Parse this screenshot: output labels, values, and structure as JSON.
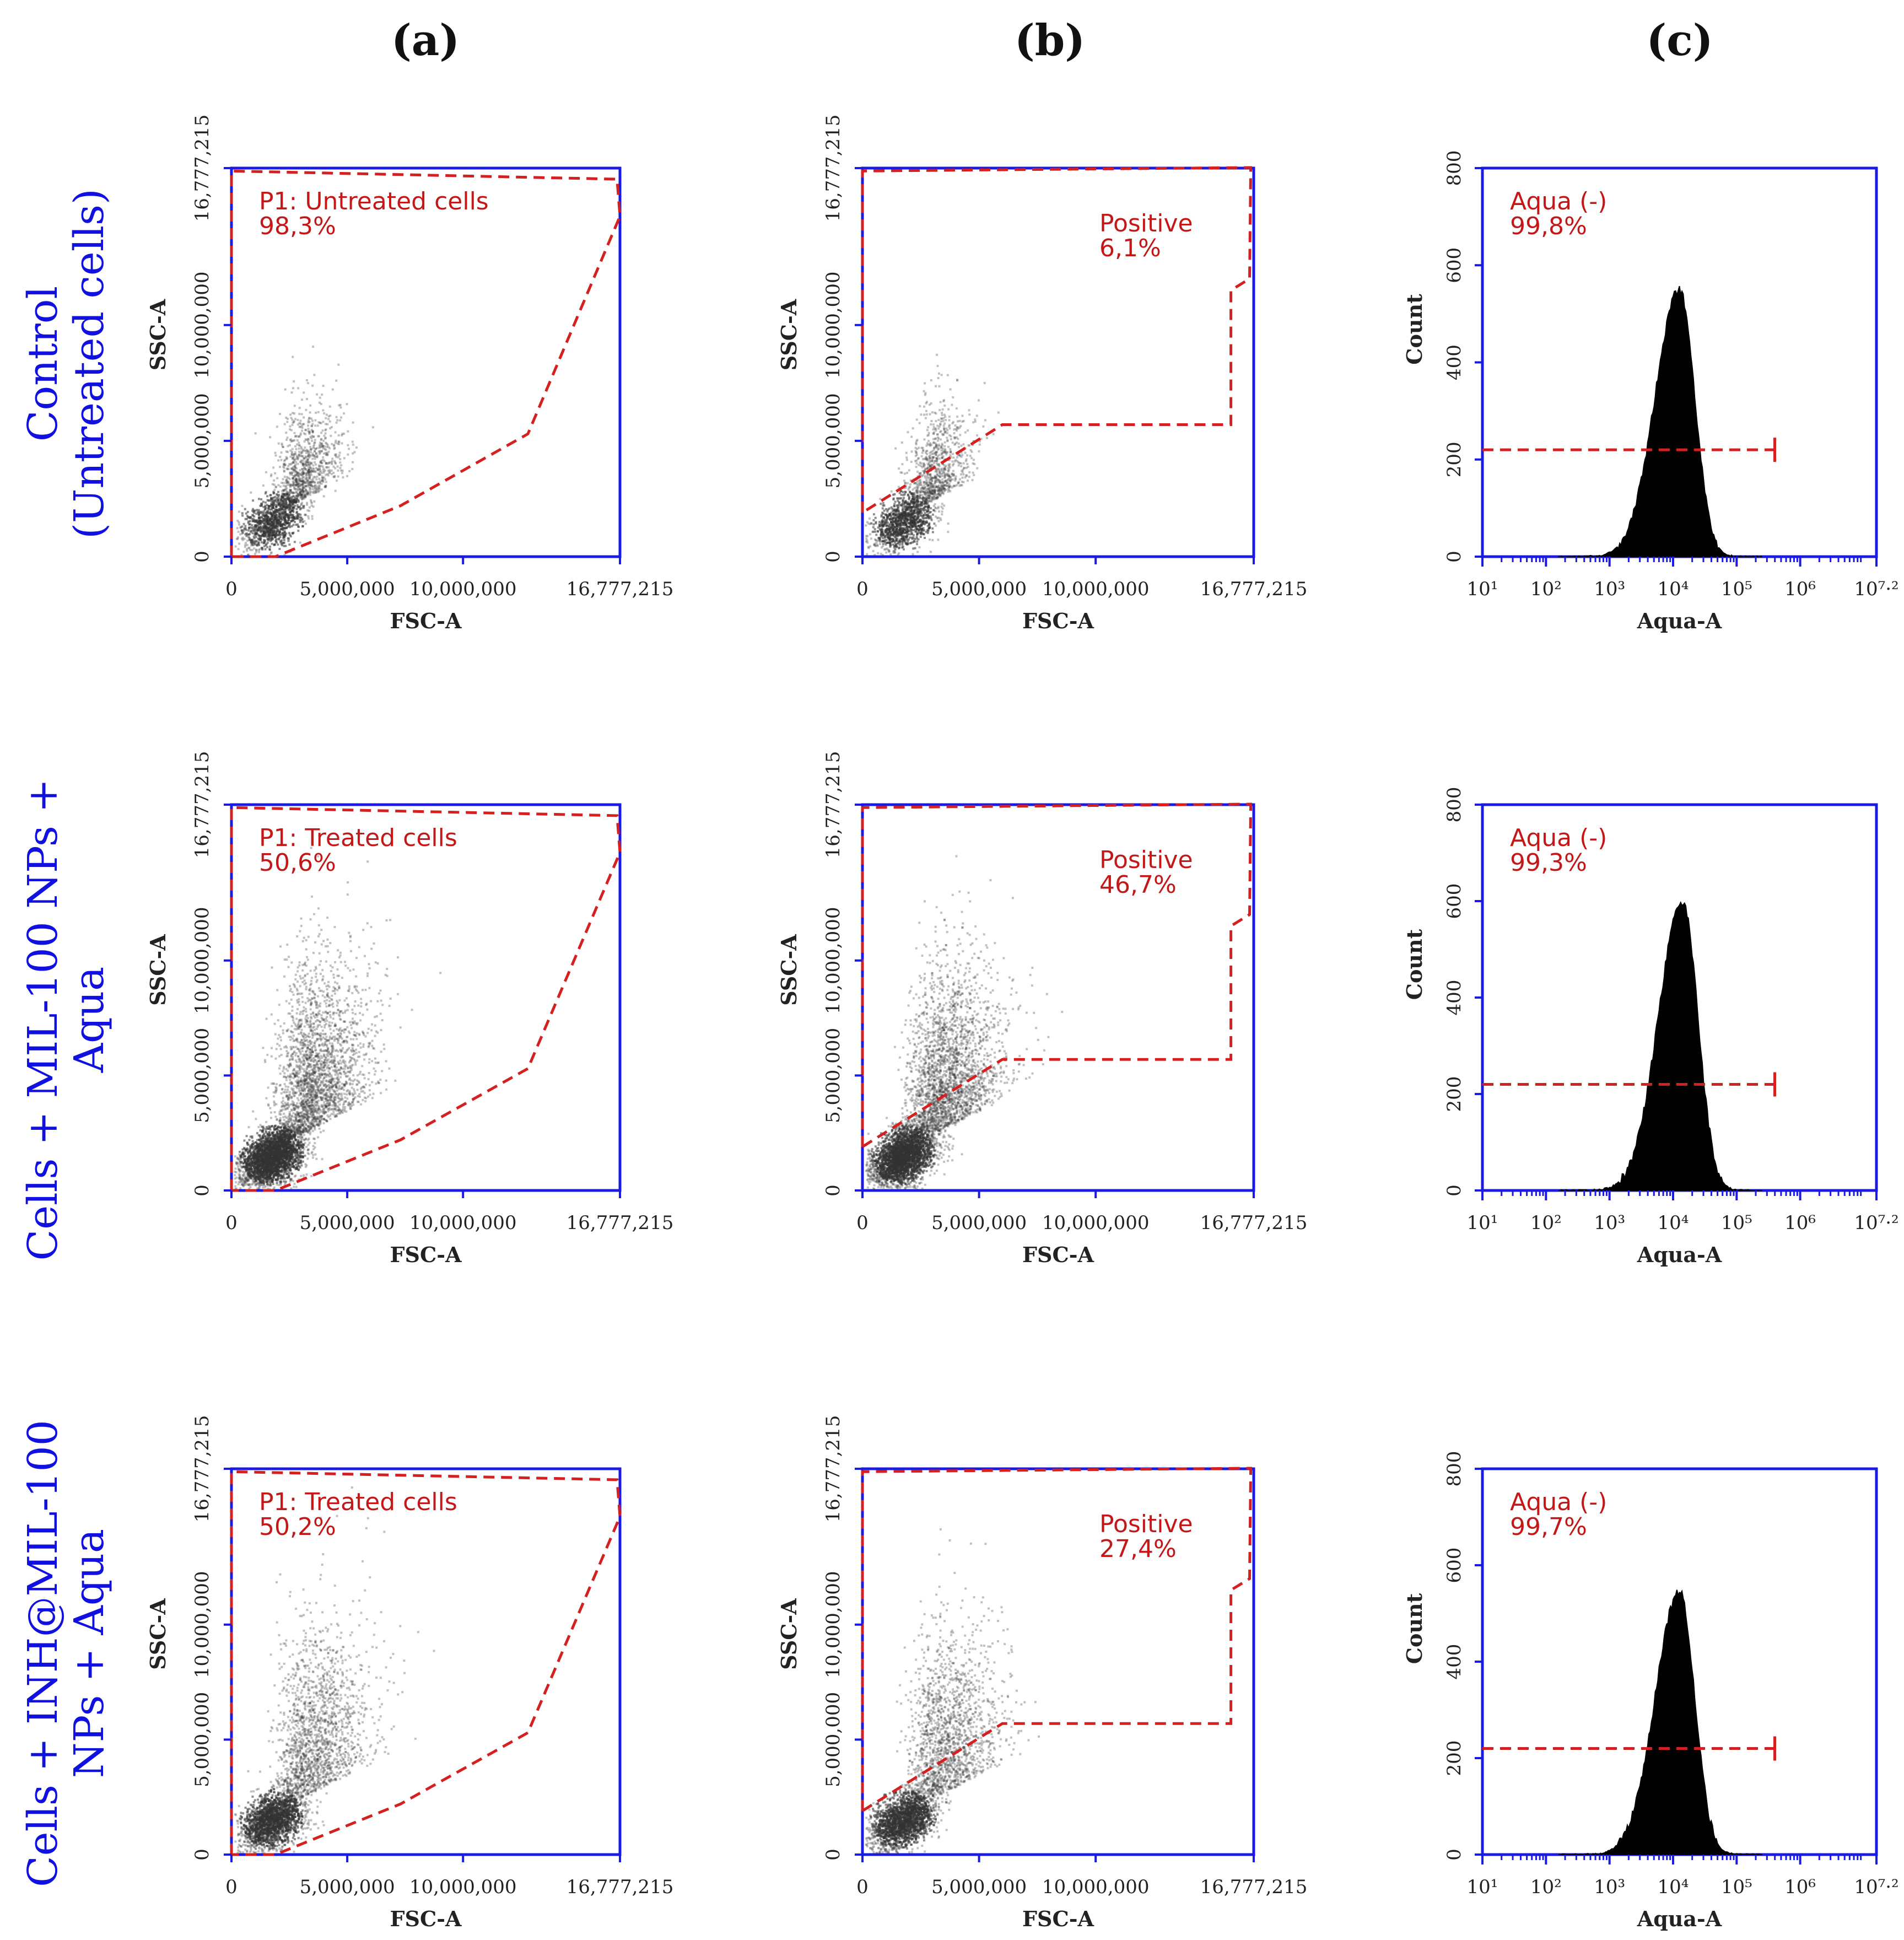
{
  "column_labels": [
    "(a)",
    "(b)",
    "(c)"
  ],
  "row_labels": [
    [
      "Control",
      "(Untreated cells)"
    ],
    [
      "Cells + MIL-100 NPs +",
      "Aqua"
    ],
    [
      "Cells + INH@MIL-100",
      "NPs + Aqua"
    ]
  ],
  "colors": {
    "axis": "#1a1ae0",
    "gate": "#d42020",
    "gate_text": "#c41818",
    "histogram": "#000000",
    "row_label": "#1010e0",
    "dots": "#333333"
  },
  "chart_data": [
    {
      "row": 0,
      "col": 0,
      "type": "scatter",
      "title": "",
      "xlabel": "FSC-A",
      "ylabel": "SSC-A",
      "xlim": [
        0,
        16777215
      ],
      "ylim": [
        0,
        16777215
      ],
      "xticks": [
        "0",
        "5,000,000",
        "10,000,000",
        "16,777,215"
      ],
      "yticks": [
        "0",
        "5,000,000",
        "10,000,000",
        "16,777,215"
      ],
      "gate": {
        "name": "P1: Untreated cells",
        "percent": "98,3%",
        "shape": "polygon"
      },
      "density": "low"
    },
    {
      "row": 0,
      "col": 1,
      "type": "scatter",
      "title": "",
      "xlabel": "FSC-A",
      "ylabel": "SSC-A",
      "xlim": [
        0,
        16777215
      ],
      "ylim": [
        0,
        16777215
      ],
      "xticks": [
        "0",
        "5,000,000",
        "10,000,000",
        "16,777,215"
      ],
      "yticks": [
        "0",
        "5,000,000",
        "10,000,000",
        "16,777,215"
      ],
      "gate": {
        "name": "Positive",
        "percent": "6,1%",
        "shape": "polygon"
      },
      "density": "low"
    },
    {
      "row": 0,
      "col": 2,
      "type": "histogram",
      "title": "",
      "xlabel": "Aqua-A",
      "ylabel": "Count",
      "ylim": [
        0,
        800
      ],
      "xticks": [
        "10¹",
        "10²",
        "10³",
        "10⁴",
        "10⁵",
        "10⁶",
        "10⁷·²"
      ],
      "yticks": [
        "0",
        "200",
        "400",
        "600",
        "800"
      ],
      "gate": {
        "name": "Aqua (-)",
        "percent": "99,8%",
        "count_level": 220
      },
      "peak": {
        "x_log10": 4.1,
        "count": 550
      }
    },
    {
      "row": 1,
      "col": 0,
      "type": "scatter",
      "title": "",
      "xlabel": "FSC-A",
      "ylabel": "SSC-A",
      "xlim": [
        0,
        16777215
      ],
      "ylim": [
        0,
        16777215
      ],
      "xticks": [
        "0",
        "5,000,000",
        "10,000,000",
        "16,777,215"
      ],
      "yticks": [
        "0",
        "5,000,000",
        "10,000,000",
        "16,777,215"
      ],
      "gate": {
        "name": "P1: Treated cells",
        "percent": "50,6%",
        "shape": "polygon"
      },
      "density": "high"
    },
    {
      "row": 1,
      "col": 1,
      "type": "scatter",
      "title": "",
      "xlabel": "FSC-A",
      "ylabel": "SSC-A",
      "xlim": [
        0,
        16777215
      ],
      "ylim": [
        0,
        16777215
      ],
      "xticks": [
        "0",
        "5,000,000",
        "10,000,000",
        "16,777,215"
      ],
      "yticks": [
        "0",
        "5,000,000",
        "10,000,000",
        "16,777,215"
      ],
      "gate": {
        "name": "Positive",
        "percent": "46,7%",
        "shape": "polygon"
      },
      "density": "high"
    },
    {
      "row": 1,
      "col": 2,
      "type": "histogram",
      "title": "",
      "xlabel": "Aqua-A",
      "ylabel": "Count",
      "ylim": [
        0,
        800
      ],
      "xticks": [
        "10¹",
        "10²",
        "10³",
        "10⁴",
        "10⁵",
        "10⁶",
        "10⁷·²"
      ],
      "yticks": [
        "0",
        "200",
        "400",
        "600",
        "800"
      ],
      "gate": {
        "name": "Aqua (-)",
        "percent": "99,3%",
        "count_level": 220
      },
      "peak": {
        "x_log10": 4.15,
        "count": 600
      }
    },
    {
      "row": 2,
      "col": 0,
      "type": "scatter",
      "title": "",
      "xlabel": "FSC-A",
      "ylabel": "SSC-A",
      "xlim": [
        0,
        16777215
      ],
      "ylim": [
        0,
        16777215
      ],
      "xticks": [
        "0",
        "5,000,000",
        "10,000,000",
        "16,777,215"
      ],
      "yticks": [
        "0",
        "5,000,000",
        "10,000,000",
        "16,777,215"
      ],
      "gate": {
        "name": "P1: Treated cells",
        "percent": "50,2%",
        "shape": "polygon"
      },
      "density": "medium"
    },
    {
      "row": 2,
      "col": 1,
      "type": "scatter",
      "title": "",
      "xlabel": "FSC-A",
      "ylabel": "SSC-A",
      "xlim": [
        0,
        16777215
      ],
      "ylim": [
        0,
        16777215
      ],
      "xticks": [
        "0",
        "5,000,000",
        "10,000,000",
        "16,777,215"
      ],
      "yticks": [
        "0",
        "5,000,000",
        "10,000,000",
        "16,777,215"
      ],
      "gate": {
        "name": "Positive",
        "percent": "27,4%",
        "shape": "polygon"
      },
      "density": "medium"
    },
    {
      "row": 2,
      "col": 2,
      "type": "histogram",
      "title": "",
      "xlabel": "Aqua-A",
      "ylabel": "Count",
      "ylim": [
        0,
        800
      ],
      "xticks": [
        "10¹",
        "10²",
        "10³",
        "10⁴",
        "10⁵",
        "10⁶",
        "10⁷·²"
      ],
      "yticks": [
        "0",
        "200",
        "400",
        "600",
        "800"
      ],
      "gate": {
        "name": "Aqua (-)",
        "percent": "99,7%",
        "count_level": 220
      },
      "peak": {
        "x_log10": 4.1,
        "count": 545
      }
    }
  ]
}
